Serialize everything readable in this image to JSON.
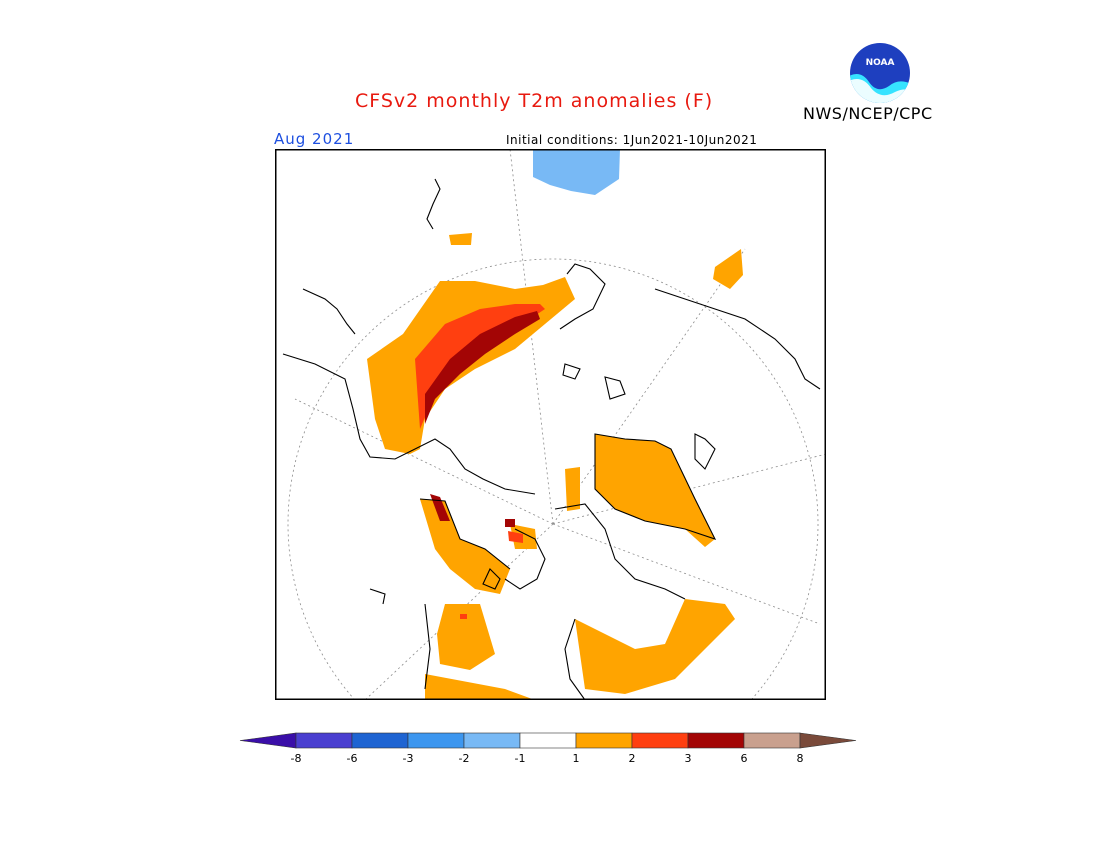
{
  "header": {
    "title": "CFSv2 monthly T2m anomalies (F)",
    "month": "Aug 2021",
    "initial_conditions": "Initial conditions: 1Jun2021-10Jun2021",
    "agency": "NWS/NCEP/CPC",
    "logo_text": "NOAA"
  },
  "colors": {
    "coastline": "#000000",
    "gridline": "#8c8c8c",
    "frame": "#000000"
  },
  "colorbar": {
    "bins": [
      {
        "color": "#3a0ea8"
      },
      {
        "color": "#4a3fd0"
      },
      {
        "color": "#1e64d2"
      },
      {
        "color": "#3c96ef"
      },
      {
        "color": "#78b9f5"
      },
      {
        "color": "#ffffff"
      },
      {
        "color": "#ffa400"
      },
      {
        "color": "#ff3f10"
      },
      {
        "color": "#a30505"
      },
      {
        "color": "#c9a08e"
      },
      {
        "color": "#7a4a3a"
      }
    ],
    "labels": [
      "-8",
      "-6",
      "-3",
      "-2",
      "-1",
      "1",
      "2",
      "3",
      "6",
      "8"
    ]
  }
}
